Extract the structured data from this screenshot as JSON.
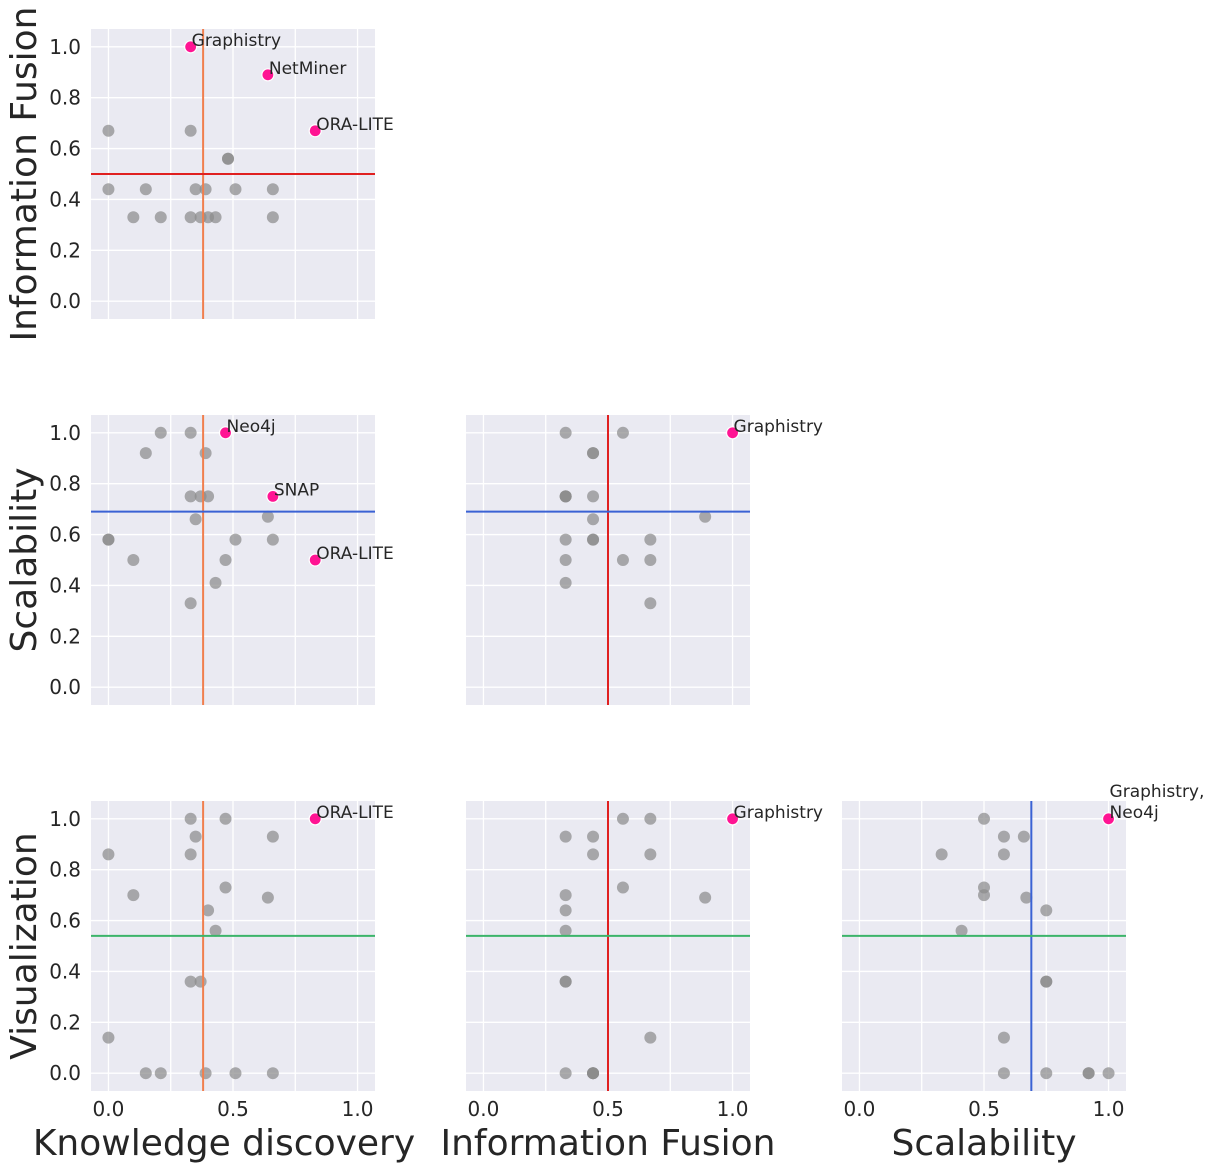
{
  "chart_data": {
    "type": "scatter",
    "title": "",
    "axis_ticks": [
      "0.0",
      "0.2",
      "0.4",
      "0.6",
      "0.8",
      "1.0"
    ],
    "x_axis_ticks": [
      "0.0",
      "0.5",
      "1.0"
    ],
    "xlim": [
      -0.07,
      1.07
    ],
    "ylim": [
      -0.07,
      1.07
    ],
    "colors": {
      "background": "#eaeaf2",
      "point": "#8c8c8c",
      "highlight": "#ff1493",
      "text": "#262626",
      "Knowledge discovery": "#f07f4e",
      "Information Fusion": "#e02020",
      "Scalability": "#3a62d4",
      "Visualization": "#3cb46a"
    },
    "panels": [
      {
        "id": "if-vs-kd",
        "xvar": "Knowledge discovery",
        "yvar": "Information Fusion",
        "vline": 0.38,
        "hline": 0.5,
        "points": [
          [
            0.0,
            0.67
          ],
          [
            0.33,
            0.67
          ],
          [
            0.48,
            0.56
          ],
          [
            0.48,
            0.56
          ],
          [
            0.0,
            0.44
          ],
          [
            0.15,
            0.44
          ],
          [
            0.35,
            0.44
          ],
          [
            0.39,
            0.44
          ],
          [
            0.51,
            0.44
          ],
          [
            0.66,
            0.44
          ],
          [
            0.1,
            0.33
          ],
          [
            0.21,
            0.33
          ],
          [
            0.33,
            0.33
          ],
          [
            0.37,
            0.33
          ],
          [
            0.4,
            0.33
          ],
          [
            0.43,
            0.33
          ],
          [
            0.66,
            0.33
          ]
        ],
        "highlights": [
          {
            "x": 0.33,
            "y": 1.0,
            "label": "Graphistry"
          },
          {
            "x": 0.64,
            "y": 0.89,
            "label": "NetMiner"
          },
          {
            "x": 0.83,
            "y": 0.67,
            "label": "ORA-LITE"
          }
        ]
      },
      {
        "id": "sc-vs-kd",
        "xvar": "Knowledge discovery",
        "yvar": "Scalability",
        "vline": 0.38,
        "hline": 0.69,
        "points": [
          [
            0.21,
            1.0
          ],
          [
            0.33,
            1.0
          ],
          [
            0.15,
            0.92
          ],
          [
            0.39,
            0.92
          ],
          [
            0.33,
            0.75
          ],
          [
            0.37,
            0.75
          ],
          [
            0.4,
            0.75
          ],
          [
            0.35,
            0.66
          ],
          [
            0.64,
            0.67
          ],
          [
            0.0,
            0.58
          ],
          [
            0.0,
            0.58
          ],
          [
            0.51,
            0.58
          ],
          [
            0.66,
            0.58
          ],
          [
            0.1,
            0.5
          ],
          [
            0.47,
            0.5
          ],
          [
            0.43,
            0.41
          ],
          [
            0.33,
            0.33
          ]
        ],
        "highlights": [
          {
            "x": 0.47,
            "y": 1.0,
            "label": "Neo4j"
          },
          {
            "x": 0.66,
            "y": 0.75,
            "label": "SNAP"
          },
          {
            "x": 0.83,
            "y": 0.5,
            "label": "ORA-LITE"
          }
        ]
      },
      {
        "id": "sc-vs-if",
        "xvar": "Information Fusion",
        "yvar": "Scalability",
        "vline": 0.5,
        "hline": 0.69,
        "points": [
          [
            0.33,
            1.0
          ],
          [
            0.56,
            1.0
          ],
          [
            0.44,
            0.92
          ],
          [
            0.44,
            0.92
          ],
          [
            0.33,
            0.75
          ],
          [
            0.33,
            0.75
          ],
          [
            0.33,
            0.75
          ],
          [
            0.44,
            0.75
          ],
          [
            0.44,
            0.66
          ],
          [
            0.89,
            0.67
          ],
          [
            0.33,
            0.58
          ],
          [
            0.44,
            0.58
          ],
          [
            0.44,
            0.58
          ],
          [
            0.67,
            0.58
          ],
          [
            0.33,
            0.5
          ],
          [
            0.56,
            0.5
          ],
          [
            0.67,
            0.5
          ],
          [
            0.33,
            0.41
          ],
          [
            0.67,
            0.33
          ]
        ],
        "highlights": [
          {
            "x": 1.0,
            "y": 1.0,
            "label": "Graphistry"
          }
        ]
      },
      {
        "id": "vi-vs-kd",
        "xvar": "Knowledge discovery",
        "yvar": "Visualization",
        "vline": 0.38,
        "hline": 0.54,
        "points": [
          [
            0.33,
            1.0
          ],
          [
            0.47,
            1.0
          ],
          [
            0.35,
            0.93
          ],
          [
            0.66,
            0.93
          ],
          [
            0.0,
            0.86
          ],
          [
            0.33,
            0.86
          ],
          [
            0.47,
            0.73
          ],
          [
            0.1,
            0.7
          ],
          [
            0.64,
            0.69
          ],
          [
            0.4,
            0.64
          ],
          [
            0.43,
            0.56
          ],
          [
            0.33,
            0.36
          ],
          [
            0.37,
            0.36
          ],
          [
            0.0,
            0.14
          ],
          [
            0.15,
            0.0
          ],
          [
            0.21,
            0.0
          ],
          [
            0.39,
            0.0
          ],
          [
            0.51,
            0.0
          ],
          [
            0.66,
            0.0
          ]
        ],
        "highlights": [
          {
            "x": 0.83,
            "y": 1.0,
            "label": "ORA-LITE"
          }
        ]
      },
      {
        "id": "vi-vs-if",
        "xvar": "Information Fusion",
        "yvar": "Visualization",
        "vline": 0.5,
        "hline": 0.54,
        "points": [
          [
            0.56,
            1.0
          ],
          [
            0.67,
            1.0
          ],
          [
            0.33,
            0.93
          ],
          [
            0.44,
            0.93
          ],
          [
            0.44,
            0.86
          ],
          [
            0.67,
            0.86
          ],
          [
            0.56,
            0.73
          ],
          [
            0.33,
            0.7
          ],
          [
            0.89,
            0.69
          ],
          [
            0.33,
            0.64
          ],
          [
            0.33,
            0.56
          ],
          [
            0.33,
            0.36
          ],
          [
            0.33,
            0.36
          ],
          [
            0.67,
            0.14
          ],
          [
            0.33,
            0.0
          ],
          [
            0.44,
            0.0
          ],
          [
            0.44,
            0.0
          ],
          [
            0.44,
            0.0
          ],
          [
            0.44,
            0.0
          ]
        ],
        "highlights": [
          {
            "x": 1.0,
            "y": 1.0,
            "label": "Graphistry"
          }
        ]
      },
      {
        "id": "vi-vs-sc",
        "xvar": "Scalability",
        "yvar": "Visualization",
        "vline": 0.69,
        "hline": 0.54,
        "points": [
          [
            0.5,
            1.0
          ],
          [
            0.58,
            0.93
          ],
          [
            0.66,
            0.93
          ],
          [
            0.33,
            0.86
          ],
          [
            0.58,
            0.86
          ],
          [
            0.5,
            0.73
          ],
          [
            0.5,
            0.7
          ],
          [
            0.67,
            0.69
          ],
          [
            0.75,
            0.64
          ],
          [
            0.41,
            0.56
          ],
          [
            0.75,
            0.36
          ],
          [
            0.75,
            0.36
          ],
          [
            0.58,
            0.14
          ],
          [
            0.58,
            0.0
          ],
          [
            0.75,
            0.0
          ],
          [
            0.92,
            0.0
          ],
          [
            0.92,
            0.0
          ],
          [
            1.0,
            0.0
          ]
        ],
        "highlights": [
          {
            "x": 1.0,
            "y": 1.0,
            "label": "Graphistry,\nNeo4j"
          }
        ]
      }
    ],
    "row_labels": [
      "Information Fusion",
      "Scalability",
      "Visualization"
    ],
    "column_labels": [
      "Knowledge discovery",
      "Information Fusion",
      "Scalability"
    ]
  }
}
